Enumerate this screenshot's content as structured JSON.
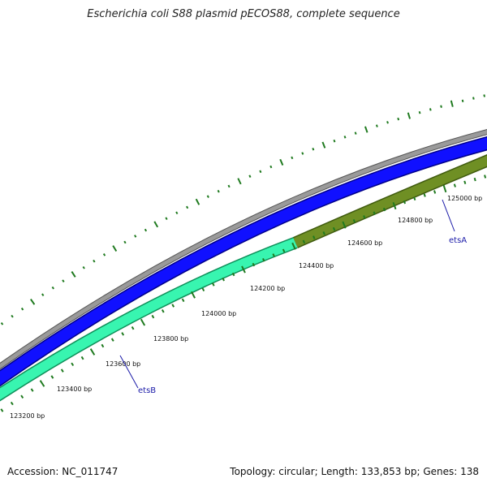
{
  "title": "Escherichia coli S88 plasmid pECOS88, complete sequence",
  "footer": {
    "accession": "Accession: NC_011747",
    "summary": "Topology: circular; Length: 133,853 bp; Genes: 138"
  },
  "position_labels": [
    "123200 bp",
    "123400 bp",
    "123600 bp",
    "123800 bp",
    "124000 bp",
    "124200 bp",
    "124400 bp",
    "124600 bp",
    "124800 bp",
    "125000 bp"
  ],
  "genes": [
    {
      "name": "etsB"
    },
    {
      "name": "etsA"
    }
  ],
  "colors": {
    "backbone": "#8c8c8c",
    "forward_cds": "#0000ee",
    "etsB": "#2ef2a8",
    "etsA": "#6b8c1f",
    "ticks": "#1f7a1f",
    "gene_label": "#1a1aa8"
  }
}
